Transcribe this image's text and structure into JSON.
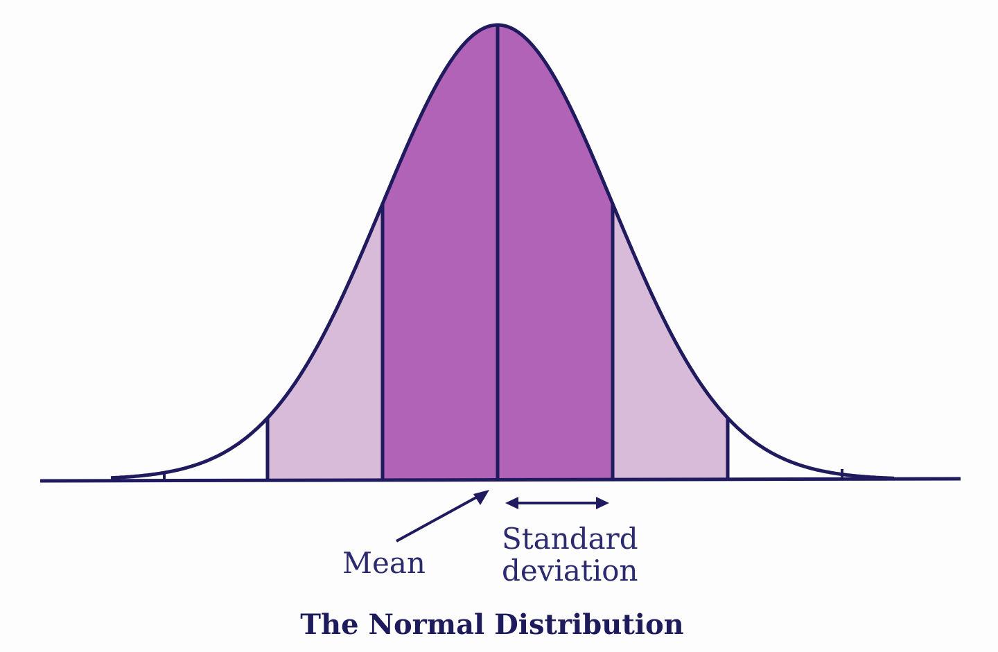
{
  "diagram": {
    "title": "The Normal Distribution",
    "mean_label": "Mean",
    "sd_label_line1": "Standard",
    "sd_label_line2": "deviation",
    "colors": {
      "outline": "#1f1b5e",
      "inner_band": "#b163b8",
      "outer_band": "#d8bad9",
      "background": "#fdfdfd",
      "text": "#2c2a6e"
    }
  }
}
